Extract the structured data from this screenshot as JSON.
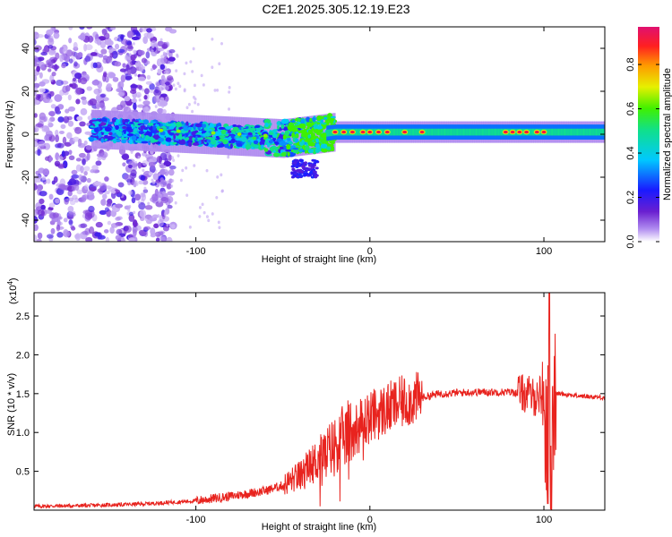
{
  "figure_title": "C2E1.2025.305.12.19.E23",
  "colors": {
    "snr_line": "#e8231e",
    "spectrogram_low": "#6a1fd0",
    "spectrogram_high": "#e01060"
  },
  "chart_data": [
    {
      "type": "heatmap",
      "name": "spectrogram",
      "xlabel": "Height of straight line (km)",
      "ylabel": "Frequency (Hz)",
      "xlim": [
        -193,
        135
      ],
      "ylim": [
        -50,
        50
      ],
      "xticks": [
        -100,
        0,
        100
      ],
      "yticks": [
        -40,
        -20,
        0,
        20,
        40
      ],
      "colorbar": {
        "label": "Normalized spectral amplitude",
        "range": [
          0.0,
          0.97
        ],
        "ticks": [
          "0.0",
          "0.2",
          "0.4",
          "0.6",
          "0.8"
        ]
      },
      "description_points": [
        {
          "x": -150,
          "freq": 2,
          "amp": 0.35
        },
        {
          "x": -100,
          "freq": 0,
          "amp": 0.4
        },
        {
          "x": -50,
          "freq": -2,
          "amp": 0.45
        },
        {
          "x": -20,
          "freq": 1,
          "amp": 0.95
        },
        {
          "x": 0,
          "freq": 1,
          "amp": 0.9
        },
        {
          "x": 50,
          "freq": 1,
          "amp": 0.45
        },
        {
          "x": 100,
          "freq": 1,
          "amp": 0.95
        },
        {
          "x": 130,
          "freq": 1,
          "amp": 0.45
        }
      ]
    },
    {
      "type": "line",
      "name": "snr",
      "xlabel": "Height of straight line (km)",
      "ylabel": "SNR (10 * v/v)",
      "scale_label": "(x10",
      "scale_exponent": "4",
      "xlim": [
        -193,
        135
      ],
      "ylim": [
        0,
        2.8
      ],
      "xticks": [
        -100,
        0,
        100
      ],
      "yticks": [
        "0.5",
        "1.0",
        "1.5",
        "2.0",
        "2.5"
      ],
      "series": [
        {
          "name": "SNR",
          "x": [
            -193,
            -160,
            -130,
            -100,
            -80,
            -60,
            -50,
            -40,
            -30,
            -20,
            -12,
            -5,
            0,
            10,
            20,
            30,
            40,
            60,
            80,
            90,
            95,
            98,
            100,
            102,
            103,
            104,
            106,
            110,
            120,
            135
          ],
          "y": [
            0.05,
            0.06,
            0.08,
            0.12,
            0.18,
            0.25,
            0.32,
            0.45,
            0.65,
            0.85,
            1.0,
            1.1,
            1.2,
            1.3,
            1.4,
            1.45,
            1.5,
            1.52,
            1.52,
            1.5,
            1.45,
            1.5,
            1.4,
            0.6,
            2.8,
            0.1,
            1.5,
            1.5,
            1.47,
            1.45
          ]
        }
      ]
    }
  ]
}
